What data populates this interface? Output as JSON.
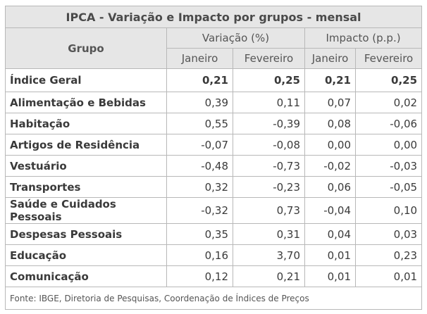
{
  "table": {
    "title": "IPCA - Variação e Impacto por grupos - mensal",
    "group_header": "Grupo",
    "variation_header": "Variação (%)",
    "impact_header": "Impacto (p.p.)",
    "month_headers": [
      "Janeiro",
      "Fevereiro",
      "Janeiro",
      "Fevereiro"
    ],
    "rows": [
      {
        "name": "Índice Geral",
        "values": [
          "0,21",
          "0,25",
          "0,21",
          "0,25"
        ]
      },
      {
        "name": "Alimentação e Bebidas",
        "values": [
          "0,39",
          "0,11",
          "0,07",
          "0,02"
        ]
      },
      {
        "name": "Habitação",
        "values": [
          "0,55",
          "-0,39",
          "0,08",
          "-0,06"
        ]
      },
      {
        "name": "Artigos de Residência",
        "values": [
          "-0,07",
          "-0,08",
          "0,00",
          "0,00"
        ]
      },
      {
        "name": "Vestuário",
        "values": [
          "-0,48",
          "-0,73",
          "-0,02",
          "-0,03"
        ]
      },
      {
        "name": "Transportes",
        "values": [
          "0,32",
          "-0,23",
          "0,06",
          "-0,05"
        ]
      },
      {
        "name": "Saúde e Cuidados Pessoais",
        "values": [
          "-0,32",
          "0,73",
          "-0,04",
          "0,10"
        ]
      },
      {
        "name": "Despesas Pessoais",
        "values": [
          "0,35",
          "0,31",
          "0,04",
          "0,03"
        ]
      },
      {
        "name": "Educação",
        "values": [
          "0,16",
          "3,70",
          "0,01",
          "0,23"
        ]
      },
      {
        "name": "Comunicação",
        "values": [
          "0,12",
          "0,21",
          "0,01",
          "0,01"
        ]
      }
    ],
    "source": "Fonte: IBGE, Diretoria de Pesquisas, Coordenação de Índices de Preços"
  }
}
